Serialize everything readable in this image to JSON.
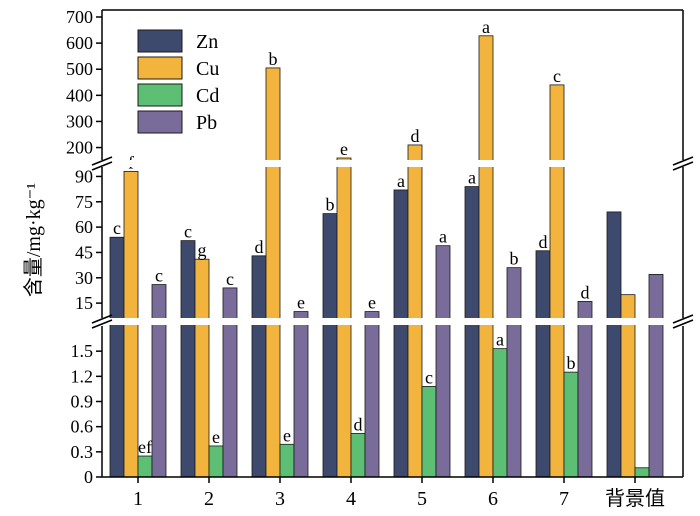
{
  "chart_data": {
    "type": "bar",
    "categories": [
      "1",
      "2",
      "3",
      "4",
      "5",
      "6",
      "7",
      "背景值"
    ],
    "ylabel": "含量/mg·kg⁻¹",
    "ylim": [
      0,
      700
    ],
    "y_axis_broken": true,
    "y_segments": [
      {
        "range": [
          0,
          1.8
        ],
        "ticks": [
          "0",
          "0.3",
          "0.6",
          "0.9",
          "1.2",
          "1.5"
        ]
      },
      {
        "range": [
          5,
          95
        ],
        "ticks": [
          "15",
          "30",
          "45",
          "60",
          "75",
          "90"
        ]
      },
      {
        "range": [
          160,
          700
        ],
        "ticks": [
          "200",
          "300",
          "400",
          "500",
          "600",
          "700"
        ]
      }
    ],
    "legend_position": "top-left",
    "series": [
      {
        "name": "Zn",
        "color": "#3d4a6e",
        "values": [
          54,
          52,
          43,
          68,
          82,
          84,
          46,
          69
        ],
        "labels": [
          "c",
          "c",
          "d",
          "b",
          "a",
          "a",
          "d",
          ""
        ]
      },
      {
        "name": "Cu",
        "color": "#f2b43d",
        "values": [
          93,
          41,
          505,
          130,
          210,
          628,
          440,
          20
        ],
        "labels": [
          "f",
          "g",
          "b",
          "e",
          "d",
          "a",
          "c",
          ""
        ]
      },
      {
        "name": "Cd",
        "color": "#5cbf73",
        "values": [
          0.25,
          0.37,
          0.39,
          0.52,
          1.08,
          1.53,
          1.25,
          0.11
        ],
        "labels": [
          "ef",
          "e",
          "e",
          "d",
          "c",
          "a",
          "b",
          ""
        ]
      },
      {
        "name": "Pb",
        "color": "#7a6c9a",
        "values": [
          26,
          24,
          10,
          10,
          49,
          36,
          16,
          32
        ],
        "labels": [
          "c",
          "c",
          "e",
          "e",
          "a",
          "b",
          "d",
          ""
        ]
      }
    ]
  }
}
